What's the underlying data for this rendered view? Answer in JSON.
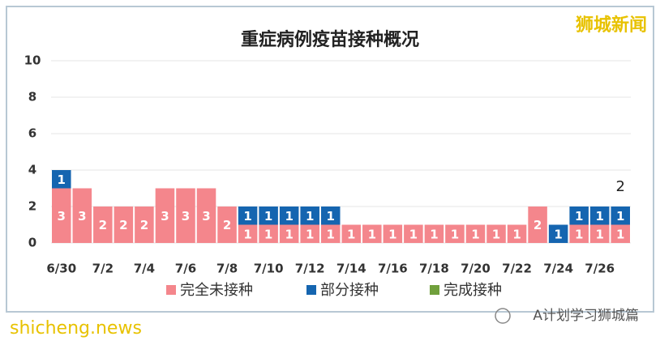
{
  "chart_data": {
    "type": "stacked_bar",
    "title": "重症病例疫苗接种概况",
    "categories": [
      "6/30",
      null,
      "7/2",
      null,
      "7/4",
      null,
      "7/6",
      null,
      "7/8",
      null,
      "7/10",
      null,
      "7/12",
      null,
      "7/14",
      null,
      "7/16",
      null,
      "7/18",
      null,
      "7/20",
      null,
      "7/22",
      null,
      "7/24",
      null,
      "7/26",
      null
    ],
    "series": [
      {
        "name": "完全未接种",
        "color": "#f4868c",
        "values": [
          3,
          3,
          2,
          2,
          2,
          3,
          3,
          3,
          2,
          1,
          1,
          1,
          1,
          1,
          1,
          1,
          1,
          1,
          1,
          1,
          1,
          1,
          1,
          2,
          0,
          1,
          1,
          1
        ]
      },
      {
        "name": "部分接种",
        "color": "#1565b0",
        "values": [
          1,
          0,
          0,
          0,
          0,
          0,
          0,
          0,
          0,
          1,
          1,
          1,
          1,
          1,
          0,
          0,
          0,
          0,
          0,
          0,
          0,
          0,
          0,
          0,
          1,
          1,
          1,
          1
        ]
      },
      {
        "name": "完成接种",
        "color": "#70a03c",
        "values": [
          0,
          0,
          0,
          0,
          0,
          0,
          0,
          0,
          0,
          0,
          0,
          0,
          0,
          0,
          0,
          0,
          0,
          0,
          0,
          0,
          0,
          0,
          0,
          0,
          0,
          0,
          0,
          0
        ]
      }
    ],
    "ylim": [
      0,
      10
    ],
    "yticks": [
      0,
      2,
      4,
      6,
      8,
      10
    ],
    "grid": true,
    "legend": "bottom",
    "annotation": "2"
  },
  "watermarks": {
    "top_right": "狮城新闻",
    "bottom_left": "shicheng.news",
    "bottom_right": "A计划学习狮城篇"
  }
}
